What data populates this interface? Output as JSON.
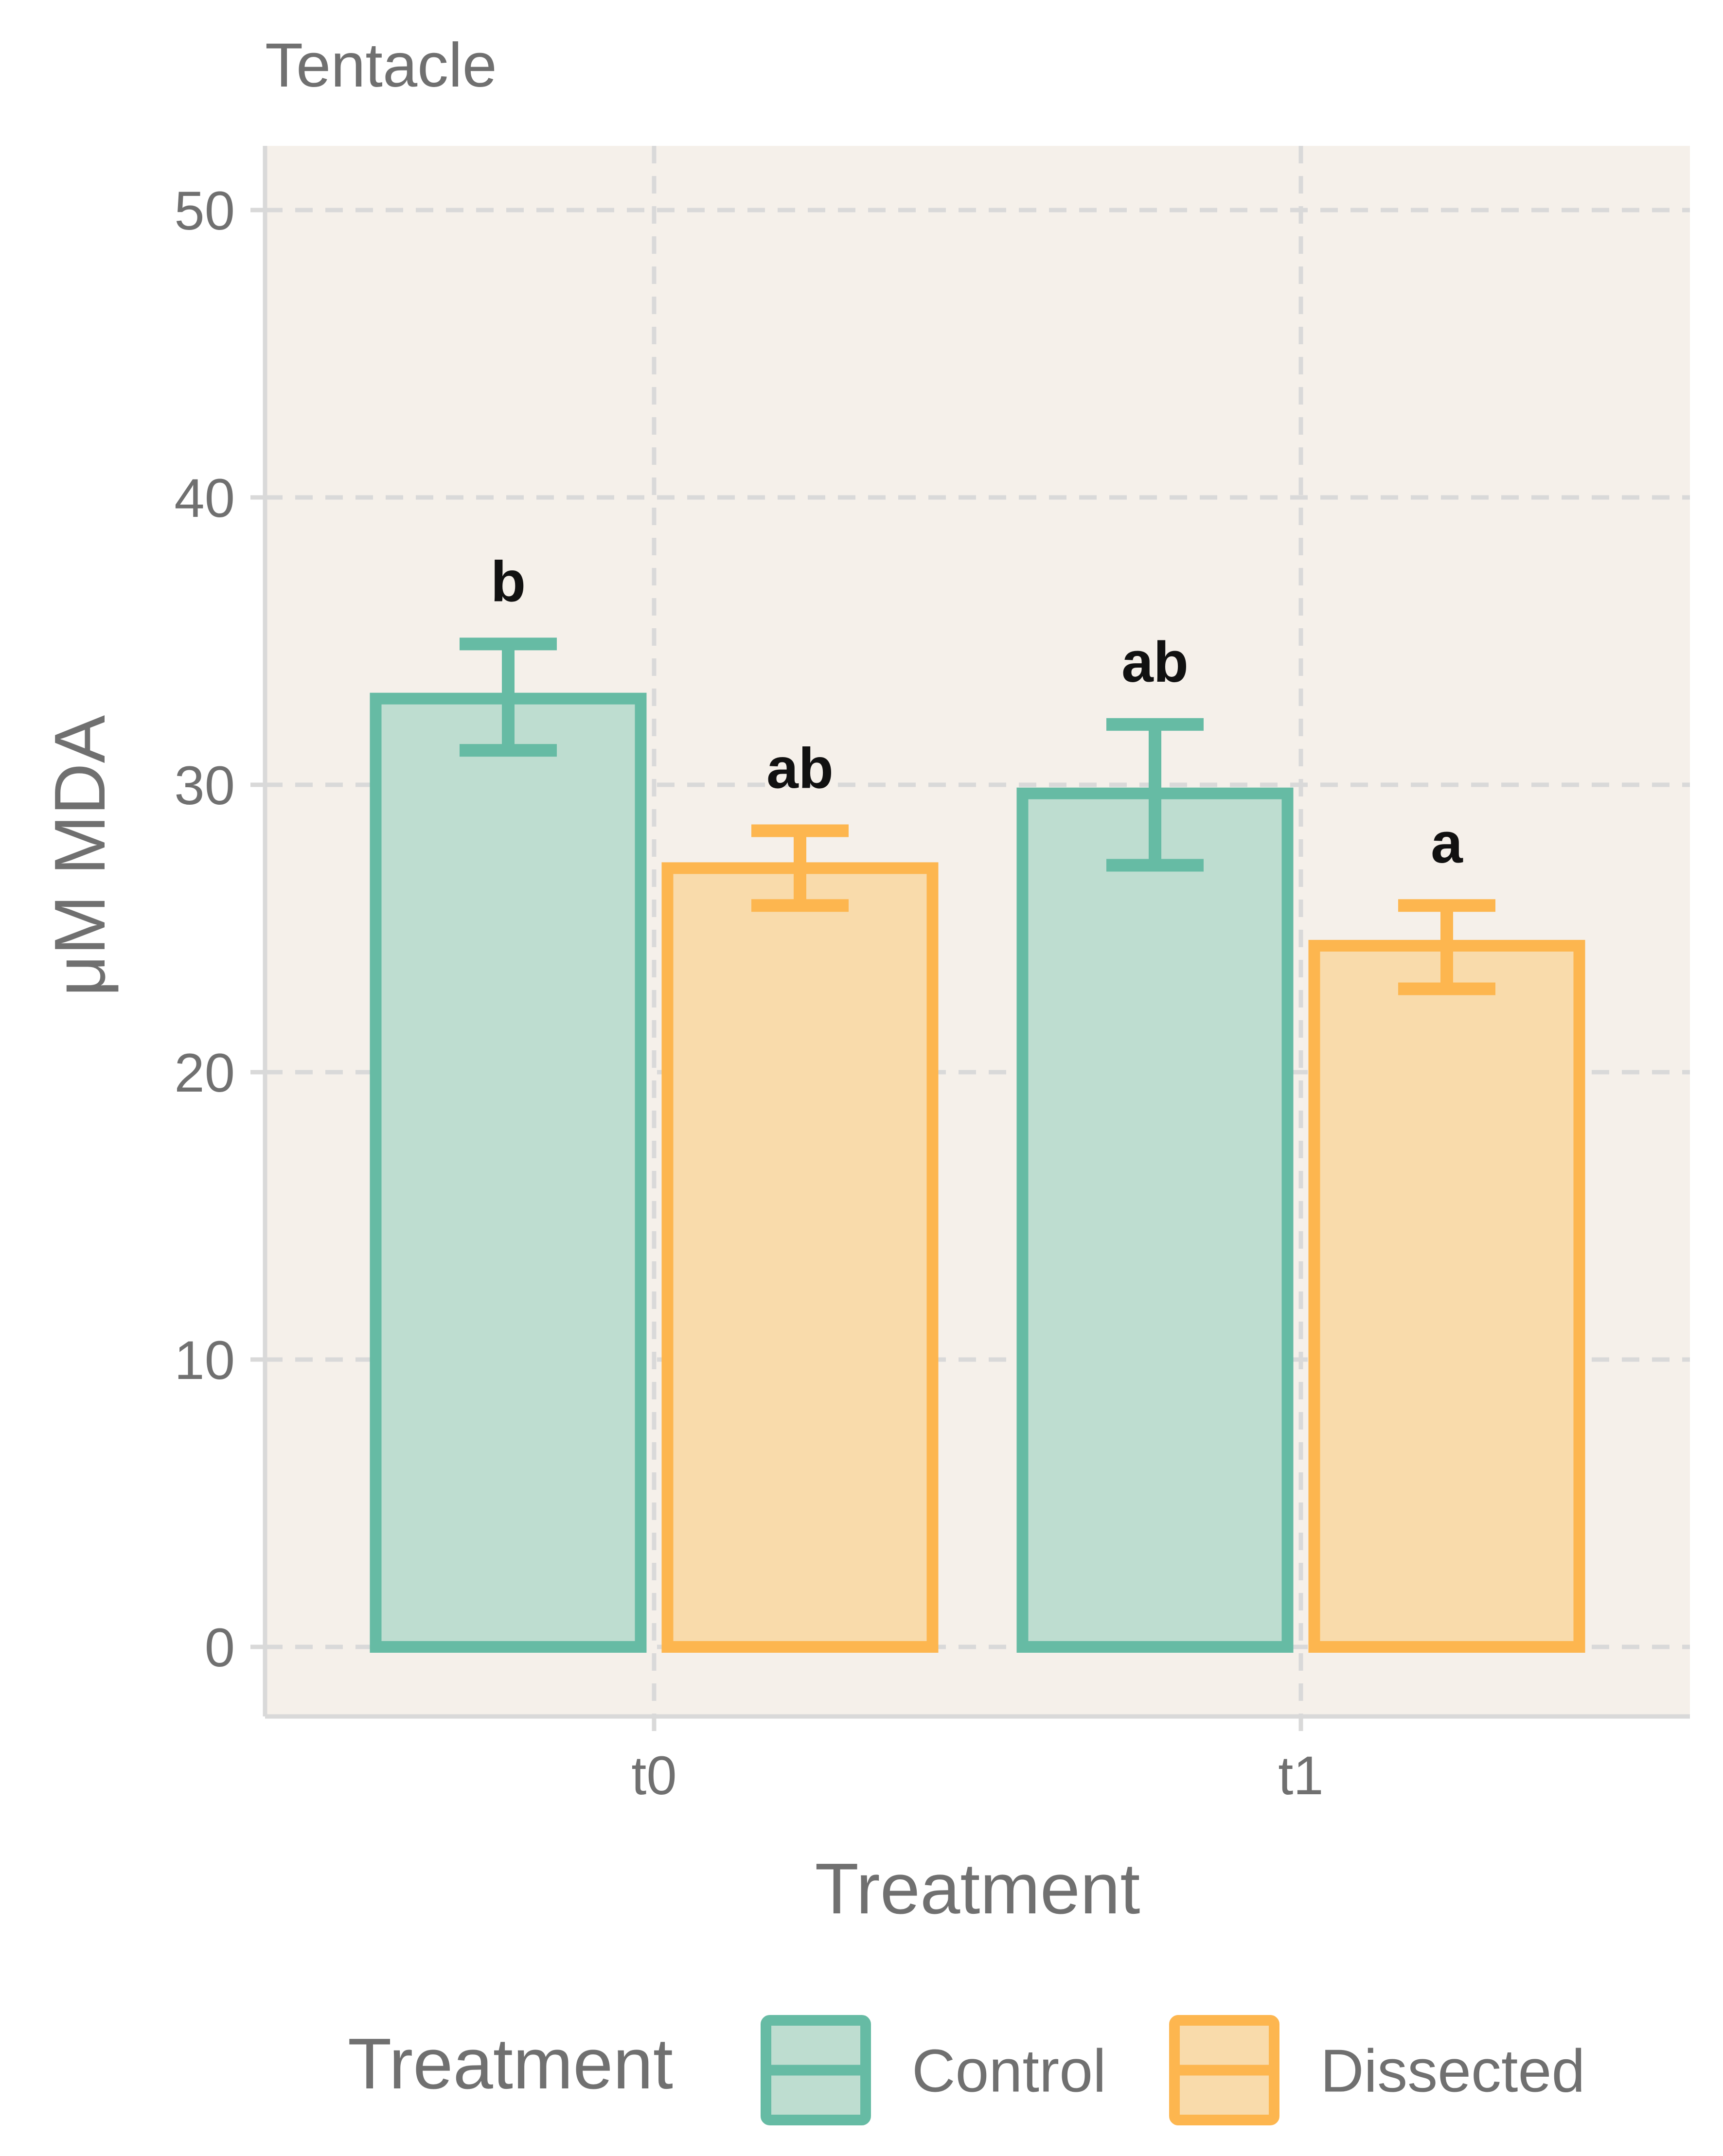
{
  "chart_data": {
    "type": "bar",
    "title": "Tentacle",
    "xlabel": "Treatment",
    "ylabel": "μM MDA",
    "categories": [
      "t0",
      "t1"
    ],
    "ylim": [
      -2.5,
      52.1
    ],
    "yticks": [
      0,
      10,
      20,
      30,
      40,
      50
    ],
    "grid": true,
    "series": [
      {
        "name": "Control",
        "color": "#66BBA4",
        "fill": "#BEDDD0",
        "values": [
          33.0,
          29.7
        ],
        "error_low": [
          31.2,
          27.2
        ],
        "error_high": [
          34.9,
          32.1
        ],
        "labels": [
          "b",
          "ab"
        ]
      },
      {
        "name": "Dissected",
        "color": "#FDB64F",
        "fill": "#F9DBAB",
        "values": [
          27.1,
          24.4
        ],
        "error_low": [
          25.8,
          22.9
        ],
        "error_high": [
          28.4,
          25.8
        ],
        "labels": [
          "ab",
          "a"
        ]
      }
    ],
    "legend": {
      "title": "Treatment",
      "position": "bottom",
      "entries": [
        "Control",
        "Dissected"
      ]
    },
    "panel_background": "#F5F0EA",
    "grid_color": "#D9D9D9"
  }
}
